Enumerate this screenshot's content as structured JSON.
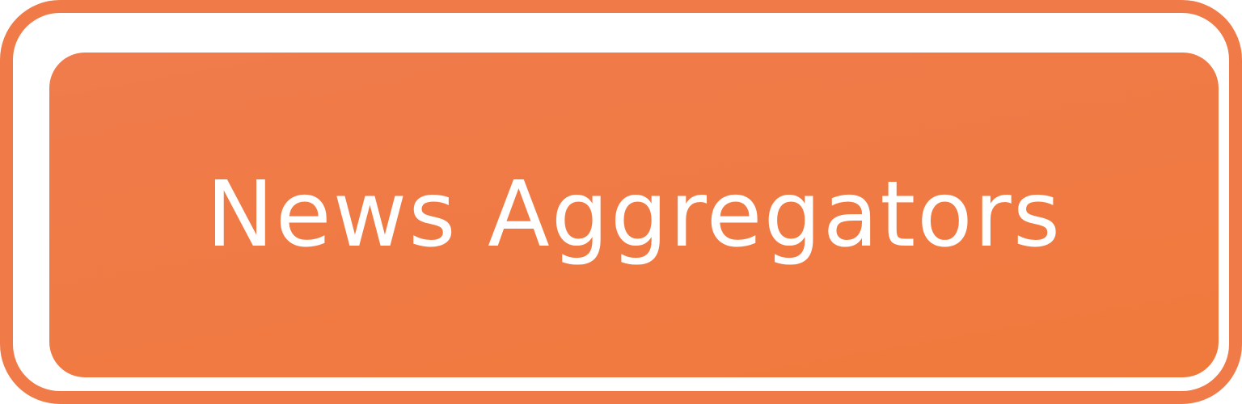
{
  "button": {
    "label": "News Aggregators"
  },
  "colors": {
    "accent": "#f07b49",
    "button_fill": "#f07a42",
    "text": "#ffffff",
    "background": "#ffffff"
  }
}
